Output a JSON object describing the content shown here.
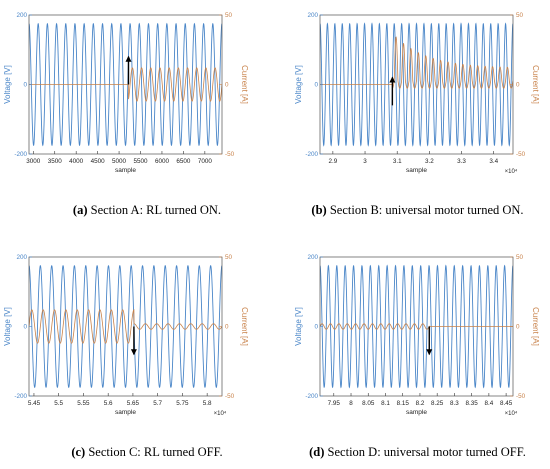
{
  "colors": {
    "voltage": "#4a86c8",
    "current": "#c8824a",
    "axis": "#333333",
    "arrow": "#000000"
  },
  "captions": [
    {
      "label": "(a)",
      "text": " Section A: RL turned ON."
    },
    {
      "label": "(b)",
      "text": " Section B: universal motor turned ON."
    },
    {
      "label": "(c)",
      "text": " Section C: RL turned OFF."
    },
    {
      "label": "(d)",
      "text": " Section D: universal motor turned OFF."
    }
  ],
  "chart_data": [
    {
      "id": "A",
      "type": "line",
      "xlabel": "sample",
      "ylabel_left": "Voltage [V]",
      "ylabel_right": "Current [A]",
      "xlim": [
        2900,
        7400
      ],
      "ylim_left": [
        -200,
        200
      ],
      "ylim_right": [
        -50,
        50
      ],
      "xticks": [
        3000,
        3500,
        4000,
        4500,
        5000,
        5500,
        6000,
        6500,
        7000
      ],
      "xtick_labels": [
        "3000",
        "3500",
        "4000",
        "4500",
        "5000",
        "5500",
        "6000",
        "6500",
        "7000"
      ],
      "x_multiplier": "",
      "yticks_left": [
        -200,
        0,
        200
      ],
      "yticks_right": [
        -50,
        0,
        50
      ],
      "voltage_amplitude": 175,
      "cycles": 21,
      "current_event": "on",
      "event_x": 5220,
      "current_amplitude": 12,
      "motor_transient": false,
      "arrow": {
        "x": 5220,
        "direction": "up",
        "y_from": 0,
        "y_to": 80
      },
      "series": [
        {
          "name": "Voltage [V]",
          "axis": "left"
        },
        {
          "name": "Current [A]",
          "axis": "right"
        }
      ]
    },
    {
      "id": "B",
      "type": "line",
      "xlabel": "sample",
      "ylabel_left": "Voltage [V]",
      "ylabel_right": "Current [A]",
      "xlim": [
        28600,
        34600
      ],
      "ylim_left": [
        -200,
        200
      ],
      "ylim_right": [
        -50,
        50
      ],
      "xticks": [
        29000,
        30000,
        31000,
        32000,
        33000,
        34000
      ],
      "xtick_labels": [
        "2.9",
        "3",
        "3.1",
        "3.2",
        "3.3",
        "3.4"
      ],
      "x_multiplier": "×10⁴",
      "yticks_left": [
        -200,
        0,
        200
      ],
      "yticks_right": [
        -50,
        0,
        50
      ],
      "voltage_amplitude": 175,
      "cycles": 26,
      "current_event": "on",
      "event_x": 30850,
      "current_amplitude": 10,
      "motor_transient": true,
      "arrow": {
        "x": 30850,
        "direction": "up",
        "y_from": -60,
        "y_to": 20
      },
      "series": [
        {
          "name": "Voltage [V]",
          "axis": "left"
        },
        {
          "name": "Current [A]",
          "axis": "right"
        }
      ]
    },
    {
      "id": "C",
      "type": "line",
      "xlabel": "sample",
      "ylabel_left": "Voltage [V]",
      "ylabel_right": "Current [A]",
      "xlim": [
        54400,
        58300
      ],
      "ylim_left": [
        -200,
        200
      ],
      "ylim_right": [
        -50,
        50
      ],
      "xticks": [
        54500,
        55000,
        55500,
        56000,
        56500,
        57000,
        57500,
        58000
      ],
      "xtick_labels": [
        "5.45",
        "5.5",
        "5.55",
        "5.6",
        "5.65",
        "5.7",
        "5.75",
        "5.8"
      ],
      "x_multiplier": "×10⁴",
      "yticks_left": [
        -200,
        0,
        200
      ],
      "yticks_right": [
        -50,
        0,
        50
      ],
      "voltage_amplitude": 175,
      "cycles": 17,
      "current_event": "off",
      "event_x": 56520,
      "current_amplitude": 12,
      "current_after": 2,
      "motor_transient": false,
      "arrow": {
        "x": 56520,
        "direction": "down",
        "y_from": 0,
        "y_to": -80
      },
      "series": [
        {
          "name": "Voltage [V]",
          "axis": "left"
        },
        {
          "name": "Current [A]",
          "axis": "right"
        }
      ]
    },
    {
      "id": "D",
      "type": "line",
      "xlabel": "sample",
      "ylabel_left": "Voltage [V]",
      "ylabel_right": "Current [A]",
      "xlim": [
        79100,
        84700
      ],
      "ylim_left": [
        -200,
        200
      ],
      "ylim_right": [
        -50,
        50
      ],
      "xticks": [
        79500,
        80000,
        80500,
        81000,
        81500,
        82000,
        82500,
        83000,
        83500,
        84000,
        84500
      ],
      "xtick_labels": [
        "7.95",
        "8",
        "8.05",
        "8.1",
        "8.15",
        "8.2",
        "8.25",
        "8.3",
        "8.35",
        "8.4",
        "8.45"
      ],
      "x_multiplier": "×10⁴",
      "yticks_left": [
        -200,
        0,
        200
      ],
      "yticks_right": [
        -50,
        0,
        50
      ],
      "voltage_amplitude": 175,
      "cycles": 23,
      "current_event": "off",
      "event_x": 82270,
      "current_amplitude": 2,
      "current_after": 0,
      "motor_transient": false,
      "arrow": {
        "x": 82270,
        "direction": "down",
        "y_from": 0,
        "y_to": -80
      },
      "series": [
        {
          "name": "Voltage [V]",
          "axis": "left"
        },
        {
          "name": "Current [A]",
          "axis": "right"
        }
      ]
    }
  ]
}
